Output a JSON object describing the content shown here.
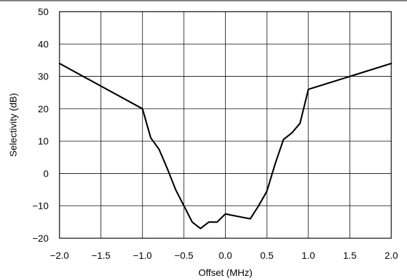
{
  "chart_data": {
    "type": "line",
    "title": "",
    "xlabel": "Offset (MHz)",
    "ylabel": "Selectivity (dB)",
    "xlim": [
      -2.0,
      2.0
    ],
    "ylim": [
      -20,
      50
    ],
    "x_ticks": [
      "−2.0",
      "−1.5",
      "−1.0",
      "−0.5",
      "0.0",
      "0.5",
      "1.0",
      "1.5",
      "2.0"
    ],
    "y_ticks": [
      "50",
      "40",
      "30",
      "20",
      "10",
      "0",
      "−10",
      "−20"
    ],
    "grid": true,
    "line_color": "#000000",
    "series": [
      {
        "x": [
          -2.0,
          -1.0,
          -0.9,
          -0.8,
          -0.7,
          -0.6,
          -0.5,
          -0.4,
          -0.35,
          -0.3,
          -0.2,
          -0.1,
          0.0,
          0.1,
          0.2,
          0.3,
          0.35,
          0.4,
          0.5,
          0.6,
          0.7,
          0.8,
          0.9,
          1.0,
          2.0
        ],
        "y": [
          34,
          20,
          11,
          7.5,
          1.5,
          -5,
          -10,
          -15,
          -16,
          -17,
          -15,
          -15,
          -12.5,
          -13,
          -13.5,
          -14,
          -12,
          -10,
          -5.5,
          3,
          10.5,
          12.5,
          15.5,
          26,
          34
        ]
      }
    ]
  }
}
